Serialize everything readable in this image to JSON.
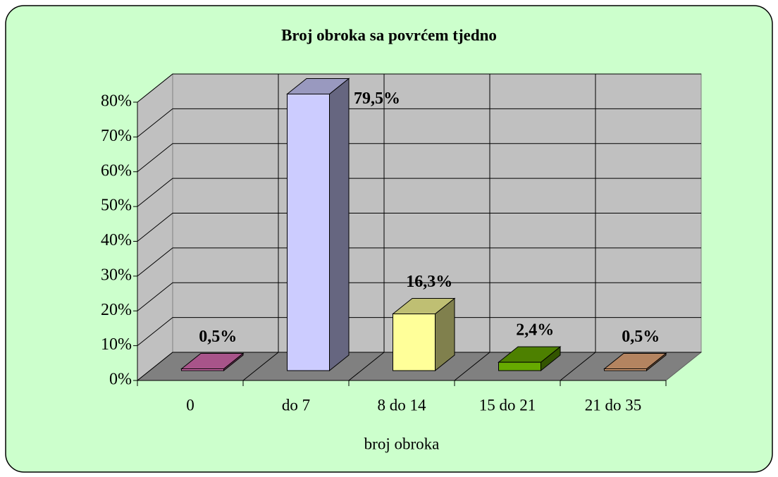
{
  "chart_data": {
    "type": "bar3d",
    "title": "Broj obroka sa povrćem tjedno",
    "x_label": "broj obroka",
    "categories": [
      "0",
      "do 7",
      "8 do 14",
      "15 do 21",
      "21 do 35"
    ],
    "values": [
      0.5,
      79.5,
      16.3,
      2.4,
      0.5
    ],
    "value_labels": [
      "0,5%",
      "79,5%",
      "16,3%",
      "2,4%",
      "0,5%"
    ],
    "colors": [
      "#e070b8",
      "#ccccff",
      "#ffff99",
      "#66aa00",
      "#f0b080"
    ],
    "ylim": [
      0,
      80
    ],
    "yticks": [
      {
        "value": 0,
        "label": "0%"
      },
      {
        "value": 10,
        "label": "10%"
      },
      {
        "value": 20,
        "label": "20%"
      },
      {
        "value": 30,
        "label": "30%"
      },
      {
        "value": 40,
        "label": "40%"
      },
      {
        "value": 50,
        "label": "50%"
      },
      {
        "value": 60,
        "label": "60%"
      },
      {
        "value": 70,
        "label": "70%"
      },
      {
        "value": 80,
        "label": "80%"
      }
    ],
    "grid": true
  }
}
